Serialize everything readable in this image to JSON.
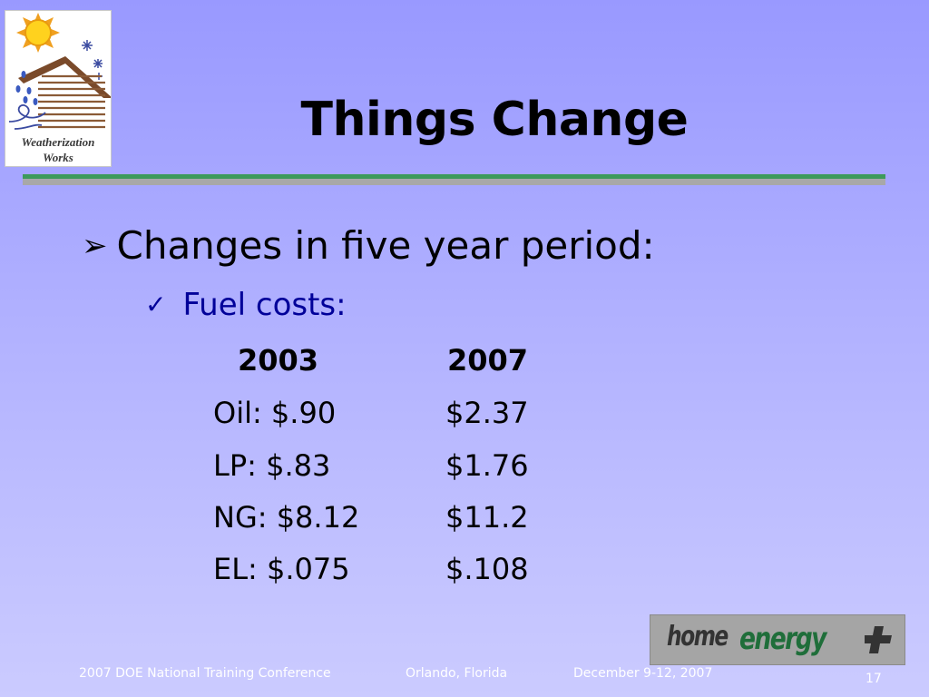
{
  "logo": {
    "line1": "Weatherization",
    "line2": "Works"
  },
  "slide": {
    "title": "Things Change",
    "bullet1": "Changes in five year period:",
    "bullet2": "Fuel costs:"
  },
  "table": {
    "headers": [
      "2003",
      "2007"
    ],
    "rows": [
      [
        "Oil: $.90",
        "$2.37"
      ],
      [
        "LP:  $.83",
        "$1.76"
      ],
      [
        "NG: $8.12",
        "$11.2"
      ],
      [
        "EL:  $.075",
        "$.108"
      ]
    ]
  },
  "badge": {
    "home": "home",
    "energy": "energy"
  },
  "footer": {
    "conference": "2007 DOE National Training Conference",
    "location": "Orlando, Florida",
    "dates": "December 9-12, 2007",
    "page_number": "17"
  },
  "colors": {
    "title": "#000000",
    "subbullet": "#000099",
    "rule_green": "#3d9a5a",
    "rule_gray": "#a8a8a8",
    "badge_green": "#1f6e3a"
  },
  "icons": {
    "bullet1": "arrowhead-bullet-icon",
    "bullet2": "checkmark-bullet-icon"
  }
}
